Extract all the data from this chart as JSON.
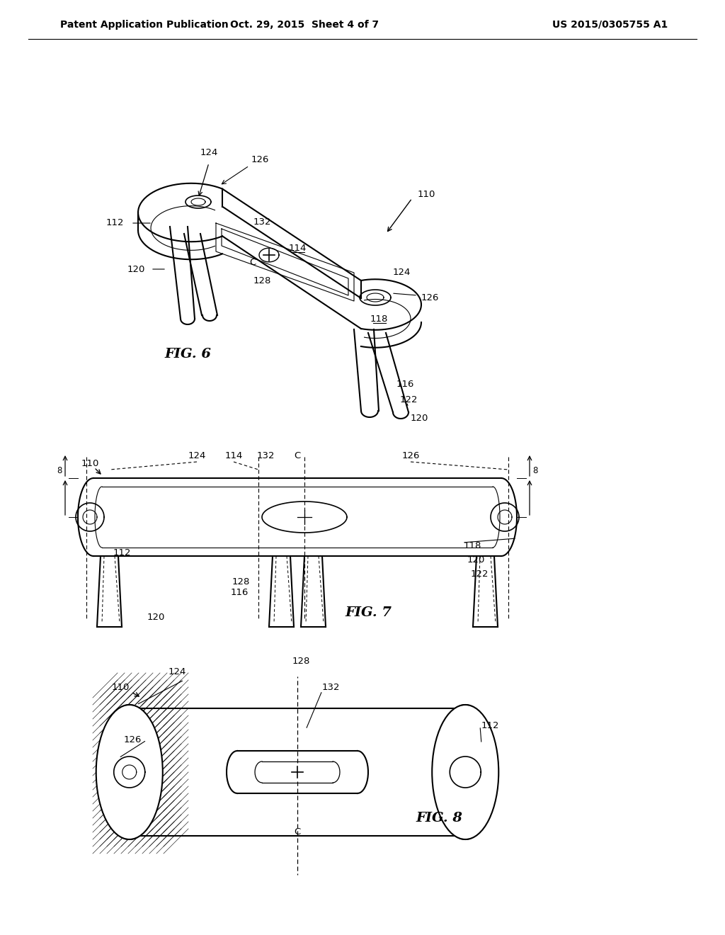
{
  "title": "",
  "header_left": "Patent Application Publication",
  "header_center": "Oct. 29, 2015  Sheet 4 of 7",
  "header_right": "US 2015/0305755 A1",
  "fig6_label": "FIG. 6",
  "fig7_label": "FIG. 7",
  "fig8_label": "FIG. 8",
  "background_color": "#ffffff",
  "line_color": "#000000",
  "hatch_color": "#000000",
  "font_size_header": 10,
  "font_size_label": 11,
  "font_size_ref": 10
}
